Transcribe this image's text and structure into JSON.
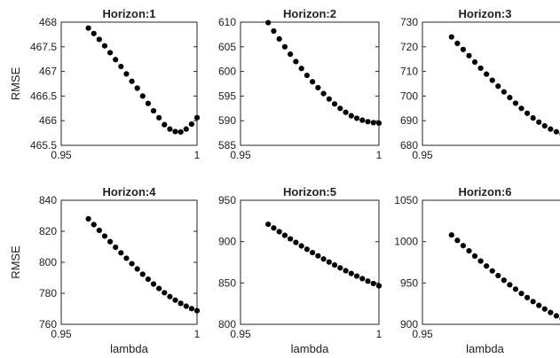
{
  "chart_data": [
    {
      "type": "scatter",
      "title": "Horizon:1",
      "xlabel": "",
      "ylabel": "RMSE",
      "xlim": [
        0.95,
        1
      ],
      "ylim": [
        465.5,
        468
      ],
      "xticks": [
        "0.95",
        "1"
      ],
      "yticks": [
        "465.5",
        "466",
        "466.5",
        "467",
        "467.5",
        "468"
      ],
      "series": [
        {
          "x": [
            0.96,
            0.962,
            0.964,
            0.966,
            0.968,
            0.97,
            0.972,
            0.974,
            0.976,
            0.978,
            0.98,
            0.982,
            0.984,
            0.986,
            0.988,
            0.99,
            0.992,
            0.994,
            0.996,
            0.998,
            1.0
          ],
          "y": [
            467.88,
            467.77,
            467.65,
            467.52,
            467.38,
            467.24,
            467.1,
            466.95,
            466.8,
            466.66,
            466.5,
            466.35,
            466.2,
            466.06,
            465.92,
            465.83,
            465.78,
            465.77,
            465.83,
            465.93,
            466.06
          ]
        }
      ]
    },
    {
      "type": "scatter",
      "title": "Horizon:2",
      "xlabel": "",
      "ylabel": "",
      "xlim": [
        0.95,
        1
      ],
      "ylim": [
        585,
        610
      ],
      "xticks": [
        "0.95",
        "1"
      ],
      "yticks": [
        "585",
        "590",
        "595",
        "600",
        "605",
        "610"
      ],
      "series": [
        {
          "x": [
            0.96,
            0.962,
            0.964,
            0.966,
            0.968,
            0.97,
            0.972,
            0.974,
            0.976,
            0.978,
            0.98,
            0.982,
            0.984,
            0.986,
            0.988,
            0.99,
            0.992,
            0.994,
            0.996,
            0.998,
            1.0
          ],
          "y": [
            609.9,
            608.2,
            606.6,
            605.0,
            603.5,
            602.0,
            600.6,
            599.2,
            597.9,
            596.7,
            595.5,
            594.4,
            593.4,
            592.5,
            591.7,
            591.0,
            590.5,
            590.1,
            589.8,
            589.6,
            589.5
          ]
        }
      ]
    },
    {
      "type": "scatter",
      "title": "Horizon:3",
      "xlabel": "",
      "ylabel": "",
      "xlim": [
        0.95,
        1
      ],
      "ylim": [
        680,
        730
      ],
      "xticks": [
        "0.95"
      ],
      "yticks": [
        "680",
        "690",
        "700",
        "710",
        "720",
        "730"
      ],
      "series": [
        {
          "x": [
            0.96,
            0.962,
            0.964,
            0.966,
            0.968,
            0.97,
            0.972,
            0.974,
            0.976,
            0.978,
            0.98,
            0.982,
            0.984,
            0.986,
            0.988,
            0.99,
            0.992,
            0.994,
            0.996,
            0.998,
            1.0
          ],
          "y": [
            724.0,
            721.4,
            718.9,
            716.4,
            713.8,
            711.3,
            708.9,
            706.4,
            704.0,
            701.7,
            699.4,
            697.1,
            695.0,
            693.0,
            691.1,
            689.4,
            687.9,
            686.6,
            685.5,
            684.6,
            684.0
          ]
        }
      ]
    },
    {
      "type": "scatter",
      "title": "Horizon:4",
      "xlabel": "lambda",
      "ylabel": "RMSE",
      "xlim": [
        0.95,
        1
      ],
      "ylim": [
        760,
        840
      ],
      "xticks": [
        "0.95",
        "1"
      ],
      "yticks": [
        "760",
        "780",
        "800",
        "820",
        "840"
      ],
      "series": [
        {
          "x": [
            0.96,
            0.962,
            0.964,
            0.966,
            0.968,
            0.97,
            0.972,
            0.974,
            0.976,
            0.978,
            0.98,
            0.982,
            0.984,
            0.986,
            0.988,
            0.99,
            0.992,
            0.994,
            0.996,
            0.998,
            1.0
          ],
          "y": [
            828.0,
            824.3,
            820.6,
            816.9,
            813.3,
            809.7,
            806.1,
            802.6,
            799.1,
            795.7,
            792.3,
            789.1,
            786.0,
            783.1,
            780.4,
            777.9,
            775.6,
            773.5,
            771.7,
            770.1,
            768.8
          ]
        }
      ]
    },
    {
      "type": "scatter",
      "title": "Horizon:5",
      "xlabel": "lambda",
      "ylabel": "",
      "xlim": [
        0.95,
        1
      ],
      "ylim": [
        800,
        950
      ],
      "xticks": [
        "0.95",
        "1"
      ],
      "yticks": [
        "800",
        "850",
        "900",
        "950"
      ],
      "series": [
        {
          "x": [
            0.96,
            0.962,
            0.964,
            0.966,
            0.968,
            0.97,
            0.972,
            0.974,
            0.976,
            0.978,
            0.98,
            0.982,
            0.984,
            0.986,
            0.988,
            0.99,
            0.992,
            0.994,
            0.996,
            0.998,
            1.0
          ],
          "y": [
            921.0,
            916.5,
            912.0,
            907.6,
            903.3,
            899.0,
            894.8,
            890.7,
            886.7,
            882.8,
            879.0,
            875.3,
            871.7,
            868.2,
            864.8,
            861.5,
            858.3,
            855.2,
            852.2,
            849.3,
            846.5
          ]
        }
      ]
    },
    {
      "type": "scatter",
      "title": "Horizon:6",
      "xlabel": "lambda",
      "ylabel": "",
      "xlim": [
        0.95,
        1
      ],
      "ylim": [
        900,
        1050
      ],
      "xticks": [
        "0.95"
      ],
      "yticks": [
        "900",
        "950",
        "1000",
        "1050"
      ],
      "series": [
        {
          "x": [
            0.96,
            0.962,
            0.964,
            0.966,
            0.968,
            0.97,
            0.972,
            0.974,
            0.976,
            0.978,
            0.98,
            0.982,
            0.984,
            0.986,
            0.988,
            0.99,
            0.992,
            0.994,
            0.996,
            0.998,
            1.0
          ],
          "y": [
            1008.0,
            1001.5,
            995.1,
            988.8,
            982.6,
            976.5,
            970.5,
            964.6,
            958.9,
            953.3,
            947.8,
            942.5,
            937.3,
            932.3,
            927.5,
            922.9,
            918.5,
            914.3,
            910.3,
            906.6,
            903.2
          ]
        }
      ]
    }
  ]
}
